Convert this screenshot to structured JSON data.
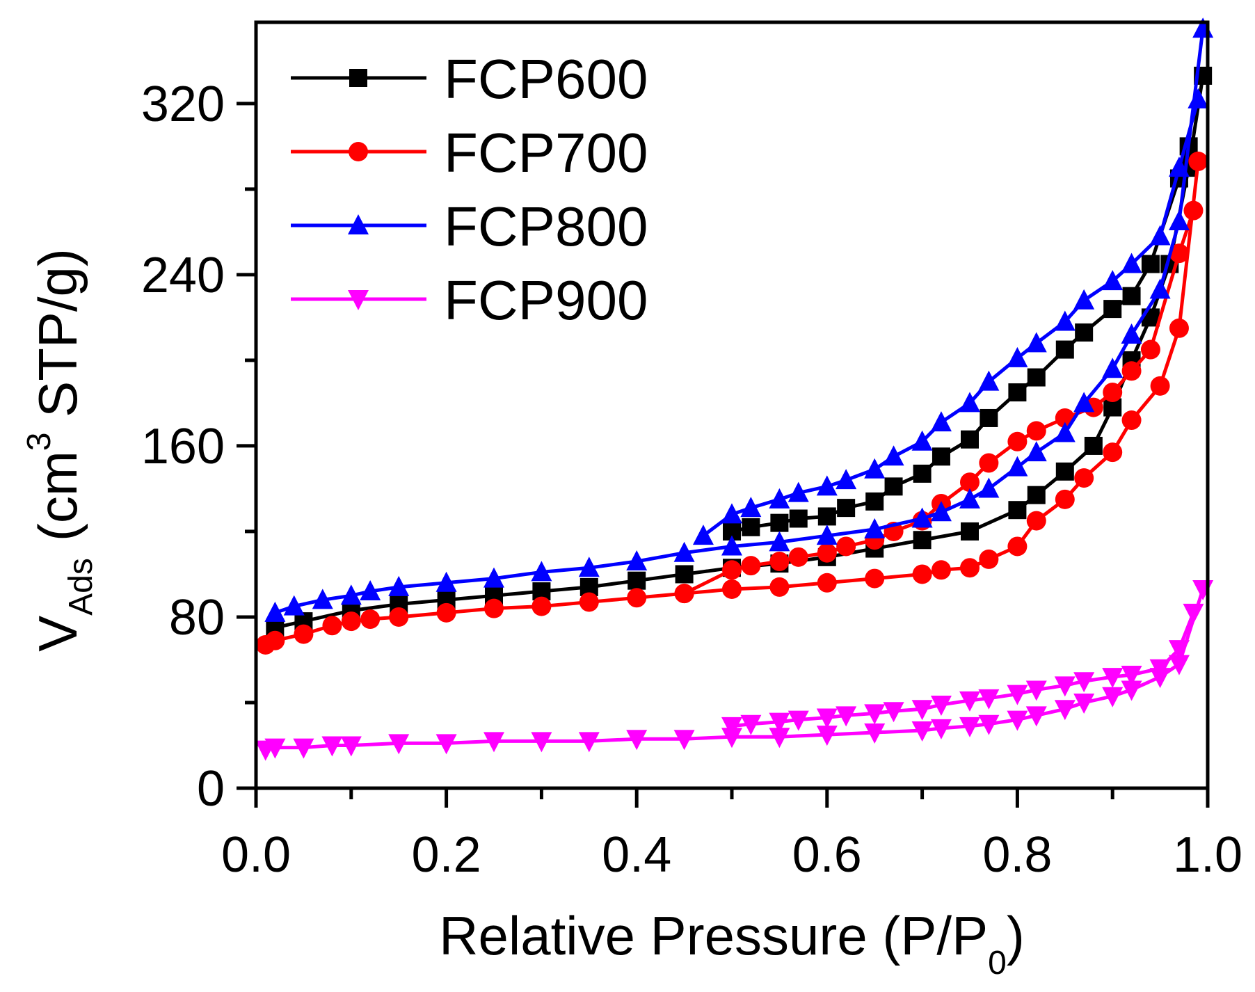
{
  "chart_data": {
    "type": "line",
    "title": "",
    "xlabel": "Relative Pressure (P/P0)",
    "xlabel_parts": {
      "main": "Relative Pressure (P/P",
      "sub": "0",
      "end": ")"
    },
    "ylabel": "V_Ads (cm^3 STP/g)",
    "ylabel_parts": {
      "v": "V",
      "sub": "Ads",
      "pre": "(cm",
      "sup": "3",
      "post": " STP/g)"
    },
    "xlim": [
      0,
      1.0
    ],
    "ylim": [
      0,
      358
    ],
    "xticks": [
      0.0,
      0.2,
      0.4,
      0.6,
      0.8,
      1.0
    ],
    "xtick_labels": [
      "0.0",
      "0.2",
      "0.4",
      "0.6",
      "0.8",
      "1.0"
    ],
    "xminor": [
      0.1,
      0.3,
      0.5,
      0.7,
      0.9
    ],
    "yticks": [
      0,
      80,
      160,
      240,
      320
    ],
    "ytick_labels": [
      "0",
      "80",
      "160",
      "240",
      "320"
    ],
    "yminor": [
      40,
      120,
      200,
      280
    ],
    "grid": false,
    "legend_position": "top-left",
    "series": [
      {
        "name": "FCP600",
        "color": "#000000",
        "marker": "square",
        "adsorption": {
          "x": [
            0.02,
            0.05,
            0.1,
            0.15,
            0.2,
            0.25,
            0.3,
            0.35,
            0.4,
            0.45,
            0.5,
            0.55,
            0.6,
            0.65,
            0.7,
            0.75,
            0.8,
            0.82,
            0.85,
            0.88,
            0.9,
            0.92,
            0.94,
            0.96,
            0.98,
            0.995
          ],
          "y": [
            75,
            78,
            83,
            86,
            88,
            90,
            92,
            94,
            97,
            100,
            103,
            105,
            108,
            112,
            116,
            120,
            130,
            137,
            148,
            160,
            178,
            200,
            220,
            245,
            290,
            333
          ]
        },
        "desorption": {
          "x": [
            0.5,
            0.52,
            0.55,
            0.57,
            0.6,
            0.62,
            0.65,
            0.67,
            0.7,
            0.72,
            0.75,
            0.77,
            0.8,
            0.82,
            0.85,
            0.87,
            0.9,
            0.92,
            0.94,
            0.97,
            0.98
          ],
          "y": [
            120,
            122,
            124,
            126,
            127,
            131,
            134,
            141,
            147,
            155,
            163,
            173,
            185,
            192,
            205,
            213,
            224,
            230,
            245,
            285,
            300
          ]
        }
      },
      {
        "name": "FCP700",
        "color": "#ff0000",
        "marker": "circle",
        "adsorption": {
          "x": [
            0.01,
            0.02,
            0.05,
            0.08,
            0.1,
            0.12,
            0.15,
            0.2,
            0.25,
            0.3,
            0.35,
            0.4,
            0.45,
            0.5,
            0.55,
            0.6,
            0.65,
            0.7,
            0.72,
            0.75,
            0.77,
            0.8,
            0.82,
            0.85,
            0.87,
            0.9,
            0.92,
            0.95,
            0.97,
            0.99
          ],
          "y": [
            67,
            69,
            72,
            76,
            78,
            79,
            80,
            82,
            84,
            85,
            87,
            89,
            91,
            93,
            94,
            96,
            98,
            100,
            102,
            103,
            107,
            113,
            125,
            135,
            145,
            157,
            172,
            188,
            215,
            293
          ]
        },
        "desorption": {
          "x": [
            0.45,
            0.5,
            0.52,
            0.55,
            0.57,
            0.6,
            0.62,
            0.65,
            0.67,
            0.7,
            0.72,
            0.75,
            0.77,
            0.8,
            0.82,
            0.85,
            0.88,
            0.9,
            0.92,
            0.94,
            0.97,
            0.985
          ],
          "y": [
            91,
            102,
            104,
            106,
            108,
            110,
            113,
            116,
            120,
            125,
            133,
            143,
            152,
            162,
            167,
            173,
            178,
            185,
            195,
            205,
            250,
            270
          ]
        }
      },
      {
        "name": "FCP800",
        "color": "#0000ff",
        "marker": "triangle-up",
        "adsorption": {
          "x": [
            0.02,
            0.04,
            0.07,
            0.1,
            0.12,
            0.15,
            0.2,
            0.25,
            0.3,
            0.35,
            0.4,
            0.45,
            0.5,
            0.55,
            0.6,
            0.65,
            0.7,
            0.72,
            0.75,
            0.77,
            0.8,
            0.82,
            0.85,
            0.87,
            0.9,
            0.92,
            0.95,
            0.97,
            0.995
          ],
          "y": [
            82,
            85,
            88,
            90,
            92,
            94,
            96,
            98,
            101,
            103,
            106,
            110,
            113,
            115,
            118,
            121,
            126,
            129,
            135,
            140,
            150,
            157,
            166,
            180,
            196,
            212,
            233,
            265,
            355
          ]
        },
        "desorption": {
          "x": [
            0.47,
            0.5,
            0.52,
            0.55,
            0.57,
            0.6,
            0.62,
            0.65,
            0.67,
            0.7,
            0.72,
            0.75,
            0.77,
            0.8,
            0.82,
            0.85,
            0.87,
            0.9,
            0.92,
            0.95,
            0.97,
            0.99
          ],
          "y": [
            118,
            128,
            131,
            135,
            138,
            141,
            144,
            149,
            155,
            162,
            171,
            180,
            190,
            201,
            208,
            218,
            228,
            237,
            245,
            258,
            290,
            322
          ]
        }
      },
      {
        "name": "FCP900",
        "color": "#ff00ff",
        "marker": "triangle-down",
        "adsorption": {
          "x": [
            0.01,
            0.02,
            0.05,
            0.08,
            0.1,
            0.15,
            0.2,
            0.25,
            0.3,
            0.35,
            0.4,
            0.45,
            0.5,
            0.55,
            0.6,
            0.65,
            0.7,
            0.72,
            0.75,
            0.77,
            0.8,
            0.82,
            0.85,
            0.87,
            0.9,
            0.92,
            0.95,
            0.97,
            0.995
          ],
          "y": [
            18,
            19,
            19,
            20,
            20,
            21,
            21,
            22,
            22,
            22,
            23,
            23,
            24,
            24,
            25,
            26,
            27,
            28,
            29,
            30,
            32,
            34,
            37,
            40,
            43,
            46,
            52,
            58,
            93
          ]
        },
        "desorption": {
          "x": [
            0.5,
            0.52,
            0.55,
            0.57,
            0.6,
            0.62,
            0.65,
            0.67,
            0.7,
            0.72,
            0.75,
            0.77,
            0.8,
            0.82,
            0.85,
            0.87,
            0.9,
            0.92,
            0.95,
            0.97,
            0.985
          ],
          "y": [
            29,
            30,
            31,
            32,
            33,
            34,
            35,
            36,
            37,
            39,
            41,
            42,
            44,
            46,
            48,
            50,
            52,
            53,
            56,
            65,
            82
          ]
        }
      }
    ]
  }
}
